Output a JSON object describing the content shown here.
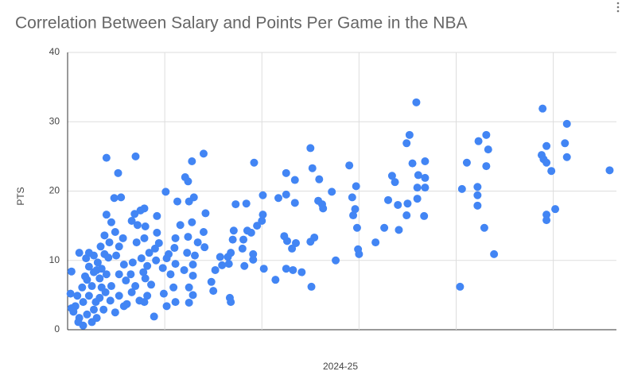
{
  "chart_data": {
    "type": "scatter",
    "title": "Correlation Between Salary and Points Per Game in the NBA",
    "x_label": "2024-25",
    "y_label": "PTS",
    "color": "#4285f4",
    "xlim": [
      0,
      56.5
    ],
    "xticks": [
      0,
      10,
      20,
      30,
      40,
      50
    ],
    "show_xtick_labels": false,
    "ylim": [
      0,
      40
    ],
    "yticks": [
      0,
      10,
      20,
      30,
      40
    ],
    "grid": true,
    "x": [
      55.8,
      51.4,
      51.2,
      51.4,
      50.2,
      48.9,
      49.3,
      48.8,
      49.0,
      49.3,
      49.8,
      49.3,
      49.3,
      43.1,
      42.3,
      43.3,
      43.1,
      41.1,
      42.2,
      42.2,
      42.2,
      42.9,
      43.9,
      40.6,
      40.4,
      35.9,
      35.2,
      34.9,
      35.5,
      36.8,
      36.1,
      36.8,
      36.0,
      36.8,
      36.0,
      35.0,
      36.7,
      34.9,
      33.4,
      33.7,
      33.0,
      34.0,
      34.1,
      32.6,
      31.7,
      29.0,
      29.7,
      29.3,
      29.6,
      29.4,
      29.8,
      29.9,
      30.0,
      27.6,
      25.0,
      25.2,
      25.9,
      27.2,
      25.8,
      26.2,
      26.3,
      25.4,
      25.0,
      25.1,
      22.5,
      23.4,
      22.5,
      21.7,
      23.4,
      20.1,
      20.1,
      20.0,
      19.2,
      22.3,
      22.6,
      23.5,
      23.1,
      22.5,
      23.2,
      24.1,
      21.4,
      20.2,
      19.5,
      18.5,
      18.9,
      18.1,
      18.0,
      19.1,
      19.1,
      18.2,
      17.3,
      18.4,
      17.1,
      17.0,
      16.8,
      16.5,
      16.6,
      15.7,
      15.9,
      16.7,
      16.8,
      15.2,
      14.8,
      15.0,
      14.0,
      12.8,
      12.1,
      12.4,
      13.0,
      12.5,
      11.3,
      10.1,
      14.2,
      11.6,
      12.8,
      14.0,
      13.4,
      14.1,
      12.4,
      13.1,
      12.9,
      12.3,
      12.0,
      12.9,
      12.5,
      12.9,
      12.5,
      11.1,
      11.0,
      10.4,
      11.1,
      10.6,
      10.9,
      9.9,
      11.1,
      10.2,
      10.2,
      9.8,
      9.1,
      9.4,
      9.0,
      8.4,
      9.2,
      9.2,
      7.9,
      8.0,
      7.0,
      7.5,
      6.9,
      6.6,
      7.2,
      7.9,
      8.2,
      7.8,
      8.0,
      8.6,
      8.2,
      7.9,
      8.9,
      7.6,
      7.1,
      6.7,
      6.5,
      6.0,
      6.97,
      6.6,
      7.4,
      6.1,
      5.2,
      4.0,
      5.5,
      4.8,
      4.0,
      4.5,
      4.9,
      5.7,
      5.3,
      4.3,
      5.0,
      5.8,
      5.3,
      4.5,
      5.3,
      5.8,
      4.9,
      0.4,
      0.8,
      0.6,
      1.2,
      1.1,
      1.6,
      2.0,
      1.6,
      1.2,
      1.9,
      2.2,
      1.8,
      2.5,
      2.2,
      2.9,
      2.7,
      3.0,
      2.5,
      2.2,
      2.7,
      3.1,
      2.7,
      3.3,
      3.5,
      3.3,
      3.7,
      2.0,
      1.5,
      1.0,
      3.0,
      3.5,
      3.8,
      3.4,
      3.8,
      4.2,
      4.0,
      3.9,
      4.4,
      0.4,
      0.3
    ],
    "values": [
      23.0,
      29.7,
      26.9,
      24.9,
      17.4,
      31.9,
      26.5,
      25.2,
      24.6,
      24.1,
      22.9,
      16.6,
      15.8,
      28.1,
      27.2,
      26.0,
      23.6,
      24.1,
      20.6,
      19.4,
      17.9,
      14.7,
      10.9,
      20.3,
      6.2,
      32.8,
      28.1,
      26.9,
      24.0,
      24.3,
      22.3,
      21.9,
      20.5,
      20.5,
      18.9,
      18.2,
      16.4,
      16.5,
      22.2,
      21.3,
      18.7,
      18.0,
      14.4,
      14.7,
      12.6,
      23.7,
      20.7,
      19.1,
      17.4,
      16.5,
      14.7,
      11.6,
      10.9,
      10.0,
      26.2,
      23.3,
      21.7,
      19.9,
      18.6,
      18.1,
      17.5,
      13.3,
      12.7,
      6.2,
      22.6,
      21.6,
      19.5,
      19.0,
      18.3,
      19.4,
      16.6,
      15.7,
      24.1,
      13.5,
      12.8,
      12.5,
      11.7,
      8.8,
      8.6,
      8.3,
      7.2,
      8.8,
      15.0,
      14.3,
      14.0,
      13.0,
      11.7,
      10.9,
      10.1,
      9.2,
      18.1,
      18.2,
      14.3,
      13.0,
      11.1,
      10.5,
      9.5,
      10.5,
      9.3,
      4.6,
      4.0,
      8.6,
      6.9,
      5.6,
      25.4,
      24.3,
      22.0,
      21.4,
      19.1,
      18.5,
      18.5,
      19.9,
      16.8,
      15.1,
      15.5,
      14.1,
      12.6,
      11.9,
      13.4,
      10.7,
      9.4,
      11.1,
      8.6,
      7.8,
      6.1,
      5.0,
      3.9,
      13.2,
      11.8,
      10.9,
      9.5,
      8.0,
      6.1,
      5.2,
      4.0,
      3.4,
      10.3,
      8.9,
      10.0,
      12.5,
      11.7,
      11.1,
      16.4,
      14.0,
      17.5,
      14.9,
      25.0,
      17.2,
      16.7,
      15.7,
      15.1,
      13.2,
      9.2,
      8.3,
      7.4,
      6.5,
      4.9,
      4.0,
      1.9,
      10.3,
      12.6,
      9.7,
      8.0,
      7.1,
      6.3,
      5.4,
      4.2,
      3.7,
      22.6,
      24.8,
      19.1,
      19.0,
      16.6,
      15.5,
      14.1,
      13.2,
      12.0,
      12.6,
      10.7,
      9.4,
      8.0,
      6.3,
      4.9,
      3.4,
      2.5,
      8.4,
      3.4,
      2.6,
      1.7,
      1.1,
      0.6,
      2.2,
      4.0,
      11.1,
      10.3,
      9.1,
      7.7,
      6.3,
      4.9,
      4.0,
      2.9,
      1.7,
      1.1,
      11.1,
      10.7,
      9.7,
      8.3,
      7.4,
      6.1,
      4.6,
      2.9,
      7.2,
      6.1,
      4.9,
      8.6,
      8.8,
      10.9,
      12.0,
      13.6,
      10.4,
      8.0,
      5.4,
      4.2,
      3.1,
      5.2
    ]
  }
}
